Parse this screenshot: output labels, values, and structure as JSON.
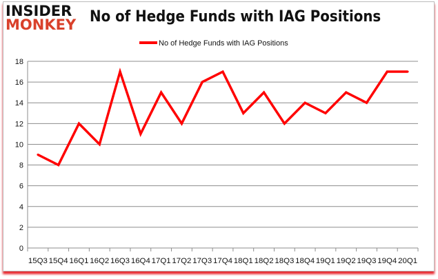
{
  "logo": {
    "line1": "INSIDER",
    "line2": "MONKEY"
  },
  "chart_data": {
    "type": "line",
    "title": "No of Hedge Funds with IAG Positions",
    "xlabel": "",
    "ylabel": "",
    "categories": [
      "15Q3",
      "15Q4",
      "16Q1",
      "16Q2",
      "16Q3",
      "16Q4",
      "17Q1",
      "17Q2",
      "17Q3",
      "17Q4",
      "18Q1",
      "18Q2",
      "18Q3",
      "18Q4",
      "19Q1",
      "19Q2",
      "19Q3",
      "19Q4",
      "20Q1"
    ],
    "series": [
      {
        "name": "No of Hedge Funds with IAG Positions",
        "color": "#ff0000",
        "values": [
          9,
          8,
          12,
          10,
          17,
          11,
          15,
          12,
          16,
          17,
          13,
          15,
          12,
          14,
          13,
          15,
          14,
          17,
          17
        ]
      }
    ],
    "ylim": [
      0,
      18
    ],
    "yticks": [
      0,
      2,
      4,
      6,
      8,
      10,
      12,
      14,
      16,
      18
    ],
    "grid": true,
    "legend_position": "top"
  }
}
